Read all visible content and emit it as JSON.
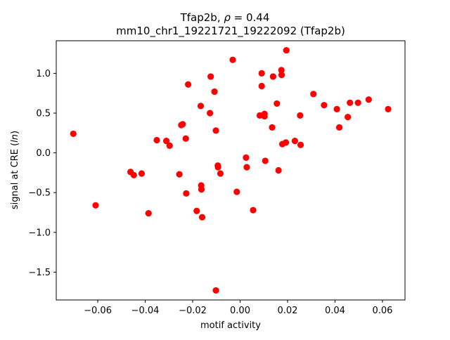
{
  "chart_data": {
    "type": "scatter",
    "title_line1_prefix": "Tfap2b, ",
    "title_line1_rho": "ρ",
    "title_line1_suffix": " = 0.44",
    "title_line2": "mm10_chr1_19221721_19222092 (Tfap2b)",
    "xlabel": "motif activity",
    "ylabel_prefix": "signal at CRE (",
    "ylabel_italic": "ln",
    "ylabel_suffix": ")",
    "xlim": [
      -0.0775,
      0.0695
    ],
    "ylim": [
      -1.85,
      1.41
    ],
    "xticks": [
      -0.06,
      -0.04,
      -0.02,
      0.0,
      0.02,
      0.04,
      0.06
    ],
    "xtick_labels": [
      "−0.06",
      "−0.04",
      "−0.02",
      "0.00",
      "0.02",
      "0.04",
      "0.06"
    ],
    "yticks": [
      -1.5,
      -1.0,
      -0.5,
      0.0,
      0.5,
      1.0
    ],
    "ytick_labels": [
      "−1.5",
      "−1.0",
      "−0.5",
      "0.0",
      "0.5",
      "1.0"
    ],
    "grid": false,
    "marker_color": "#ff0000",
    "x": [
      -0.0703,
      -0.0609,
      -0.0462,
      -0.0448,
      -0.0415,
      -0.0386,
      -0.0351,
      -0.0311,
      -0.0297,
      -0.0256,
      -0.0248,
      -0.0242,
      -0.0229,
      -0.0227,
      -0.0219,
      -0.0183,
      -0.0166,
      -0.0164,
      -0.0163,
      -0.016,
      -0.0127,
      -0.0124,
      -0.0108,
      -0.0102,
      -0.0102,
      -0.0094,
      -0.0093,
      -0.0083,
      -0.0031,
      -0.0014,
      0.0025,
      0.0028,
      0.0055,
      0.0083,
      0.0091,
      0.0091,
      0.0103,
      0.0103,
      0.0106,
      0.0135,
      0.0139,
      0.0155,
      0.0162,
      0.0174,
      0.0175,
      0.0178,
      0.0193,
      0.0195,
      0.0231,
      0.0253,
      0.0255,
      0.0309,
      0.0354,
      0.0408,
      0.0418,
      0.0454,
      0.0463,
      0.0497,
      0.0542,
      0.0624
    ],
    "y": [
      0.24,
      -0.66,
      -0.24,
      -0.28,
      -0.26,
      -0.76,
      0.16,
      0.15,
      0.09,
      -0.27,
      0.35,
      0.36,
      0.18,
      -0.51,
      0.86,
      -0.73,
      0.59,
      -0.41,
      -0.46,
      -0.81,
      0.5,
      0.96,
      0.77,
      0.28,
      -1.73,
      -0.16,
      -0.18,
      -0.26,
      1.17,
      -0.49,
      -0.06,
      -0.18,
      -0.72,
      0.47,
      1.0,
      0.84,
      0.49,
      0.46,
      -0.1,
      0.32,
      0.96,
      0.62,
      -0.22,
      1.04,
      0.98,
      0.11,
      0.13,
      1.29,
      0.15,
      0.47,
      0.1,
      0.74,
      0.6,
      0.55,
      0.32,
      0.45,
      0.63,
      0.63,
      0.67,
      0.55
    ]
  }
}
